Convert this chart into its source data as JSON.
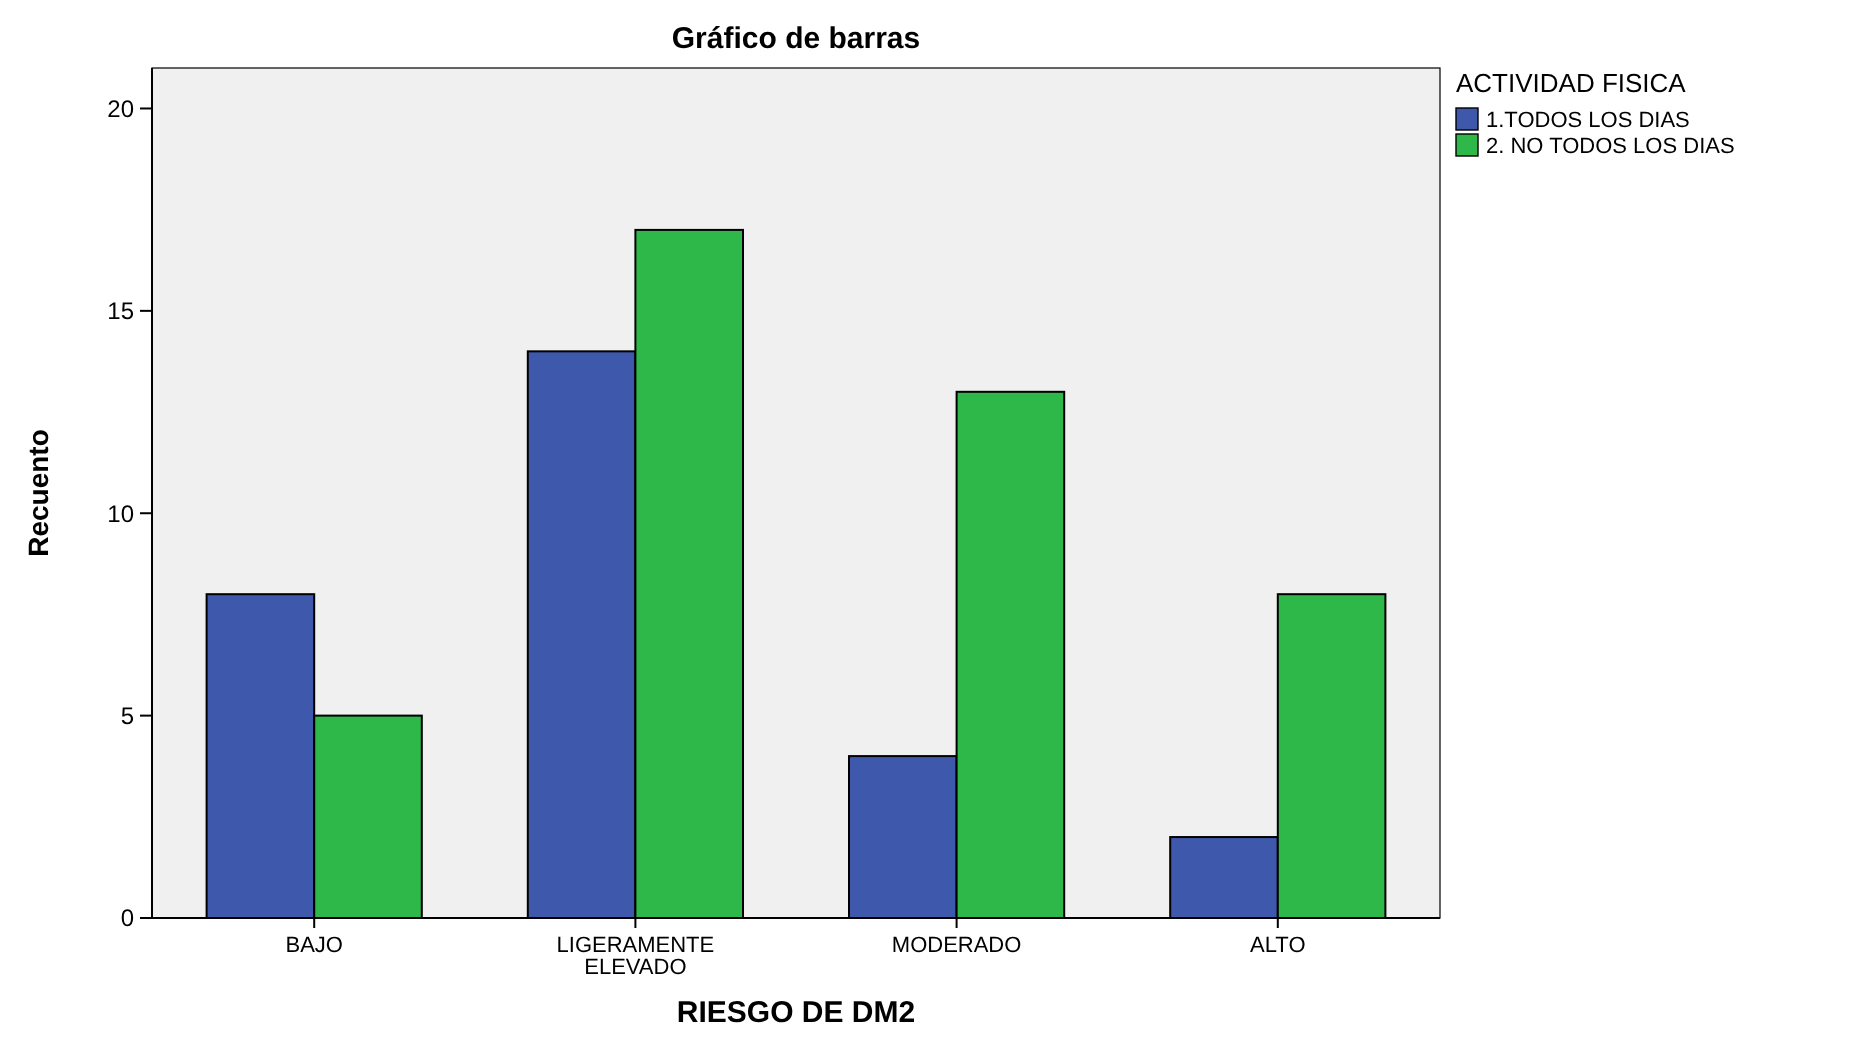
{
  "chart_data": {
    "type": "bar",
    "title": "Gráfico de barras",
    "xlabel": "RIESGO DE DM2",
    "ylabel": "Recuento",
    "legend_title": "ACTIVIDAD FISICA",
    "legend": "top right",
    "grid": false,
    "categories": [
      "BAJO",
      "LIGERAMENTE ELEVADO",
      "MODERADO",
      "ALTO"
    ],
    "series": [
      {
        "name": "1.TODOS LOS DIAS",
        "color": "#3e58ac",
        "values": [
          8,
          14,
          4,
          2
        ]
      },
      {
        "name": "2. NO TODOS LOS DIAS",
        "color": "#2eb84a",
        "values": [
          5,
          17,
          13,
          8
        ]
      }
    ],
    "ylim": [
      0,
      21
    ],
    "yticks": [
      0,
      5,
      10,
      15,
      20
    ]
  }
}
